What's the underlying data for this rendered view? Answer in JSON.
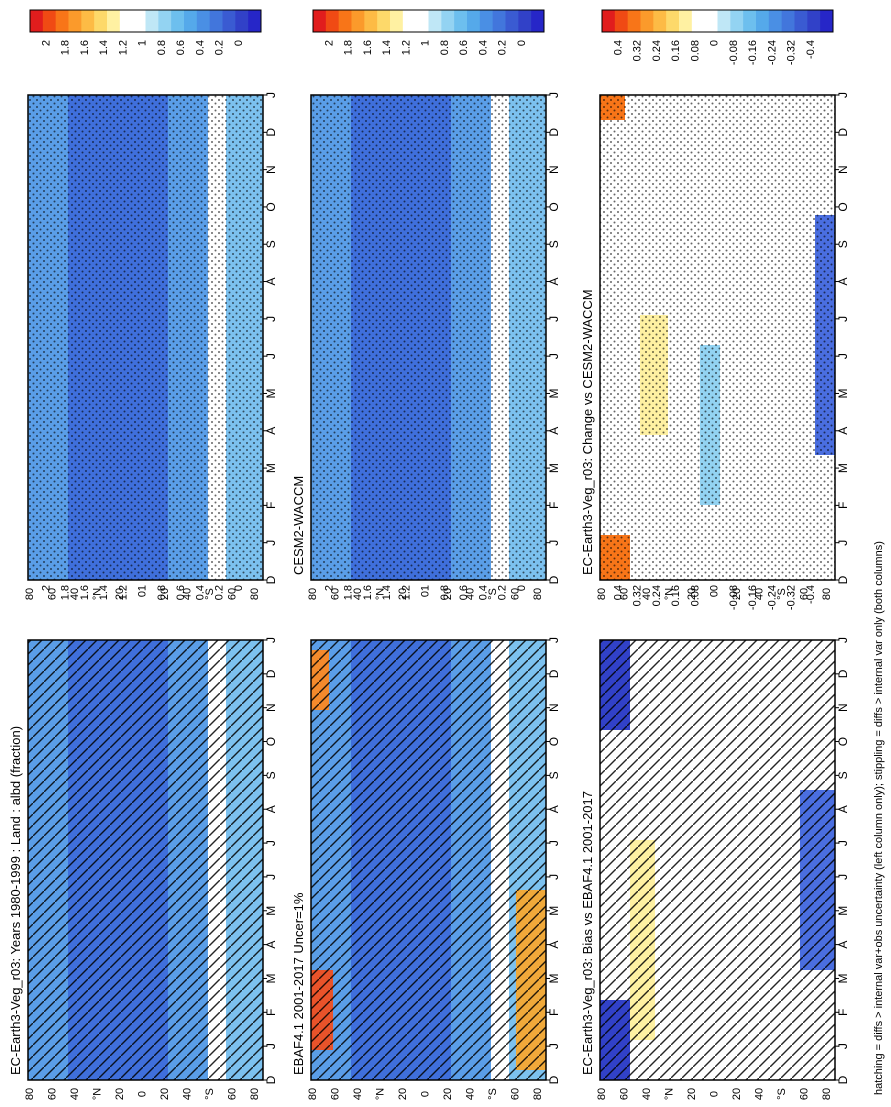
{
  "figure": {
    "footer": "hatching = diffs > internal var+obs uncertainty (left column only); stippling = diffs > internal var only (both columns)"
  },
  "month_labels": [
    "D",
    "J",
    "F",
    "M",
    "A",
    "M",
    "J",
    "J",
    "A",
    "S",
    "O",
    "N",
    "D",
    "J"
  ],
  "lat_labels": [
    "80",
    "60",
    "40",
    "°N",
    "20",
    "0",
    "20",
    "40",
    "°S",
    "60",
    "80"
  ],
  "colorbars": {
    "albedo": {
      "labels": [
        "2",
        "1.8",
        "1.6",
        "1.4",
        "1.2",
        "1",
        "0.8",
        "0.6",
        "0.4",
        "0.2",
        "0"
      ],
      "colors": [
        "#e11d1d",
        "#f04a14",
        "#f87518",
        "#fb9a2b",
        "#fdbb45",
        "#fdd96a",
        "#fff1a2",
        "#ffffff",
        "#ffffff",
        "#bfe7f6",
        "#93d3f2",
        "#6dbfee",
        "#55a9ea",
        "#4a8fe4",
        "#4276dc",
        "#3a5bd2",
        "#3141c8",
        "#2626c8"
      ]
    },
    "diff": {
      "labels": [
        "0.4",
        "0.32",
        "0.24",
        "0.16",
        "0.08",
        "0",
        "-0.08",
        "-0.16",
        "-0.24",
        "-0.32",
        "-0.4"
      ],
      "colors": [
        "#e11d1d",
        "#f04a14",
        "#f87518",
        "#fb9a2b",
        "#fdbb45",
        "#fdd96a",
        "#fff1a2",
        "#ffffff",
        "#ffffff",
        "#bfe7f6",
        "#93d3f2",
        "#6dbfee",
        "#55a9ea",
        "#4a8fe4",
        "#4276dc",
        "#3a5bd2",
        "#3141c8",
        "#2626c8"
      ]
    }
  },
  "panels": [
    {
      "id": "model-left",
      "title": "EC-Earth3-Veg_r03: Years 1980-1999 : Land : albd (fraction)",
      "scale": "albedo",
      "overlay": "hatch"
    },
    {
      "id": "obs",
      "title": "EBAF4.1 2001-2017 Uncer=1%",
      "scale": "albedo",
      "overlay": "hatch"
    },
    {
      "id": "bias",
      "title": "EC-Earth3-Veg_r03: Bias vs EBAF4.1 2001-2017",
      "scale": "diff",
      "overlay": "hatch"
    },
    {
      "id": "model-right",
      "title": "",
      "scale": "albedo",
      "overlay": "stipple"
    },
    {
      "id": "ref",
      "title": "CESM2-WACCM",
      "scale": "albedo",
      "overlay": "stipple"
    },
    {
      "id": "change",
      "title": "EC-Earth3-Veg_r03: Change vs CESM2-WACCM",
      "scale": "diff",
      "overlay": "stipple"
    }
  ],
  "chart_data": {
    "type": "heatmap",
    "x_axis": "month (D, J, F, M, A, M, J, J, A, S, O, N, D, J)",
    "y_axis": "latitude (80°N to 80°S)",
    "albedo_fill_approx": "mostly 0.2-0.6 fraction; 0.8-2 near poles in EBAF4.1",
    "bias_range": [
      -0.4,
      0.4
    ]
  }
}
